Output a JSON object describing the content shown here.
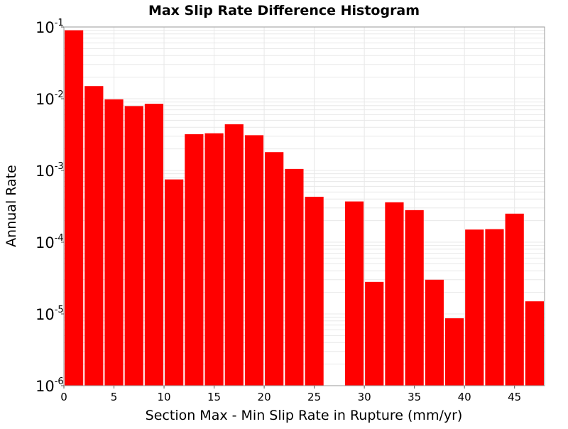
{
  "chart_data": {
    "type": "bar",
    "title": "Max Slip Rate Difference Histogram",
    "xlabel": "Section Max - Min Slip Rate in Rupture (mm/yr)",
    "ylabel": "Annual Rate",
    "x_scale": "linear",
    "y_scale": "log",
    "xlim": [
      0,
      48
    ],
    "ylim": [
      1e-06,
      0.1
    ],
    "x_ticks": [
      {
        "value": 0,
        "label": "0"
      },
      {
        "value": 5,
        "label": "5"
      },
      {
        "value": 10,
        "label": "10"
      },
      {
        "value": 15,
        "label": "15"
      },
      {
        "value": 20,
        "label": "20"
      },
      {
        "value": 25,
        "label": "25"
      },
      {
        "value": 30,
        "label": "30"
      },
      {
        "value": 35,
        "label": "35"
      },
      {
        "value": 40,
        "label": "40"
      },
      {
        "value": 45,
        "label": "45"
      }
    ],
    "y_ticks": [
      {
        "value": 1e-06,
        "base": "10",
        "exponent": "-6"
      },
      {
        "value": 1e-05,
        "base": "10",
        "exponent": "-5"
      },
      {
        "value": 0.0001,
        "base": "10",
        "exponent": "-4"
      },
      {
        "value": 0.001,
        "base": "10",
        "exponent": "-3"
      },
      {
        "value": 0.01,
        "base": "10",
        "exponent": "-2"
      },
      {
        "value": 0.1,
        "base": "10",
        "exponent": "-1"
      }
    ],
    "bin_width": 2,
    "bins": [
      {
        "x": 1,
        "value": 0.09
      },
      {
        "x": 3,
        "value": 0.015
      },
      {
        "x": 5,
        "value": 0.0098
      },
      {
        "x": 7,
        "value": 0.0079
      },
      {
        "x": 9,
        "value": 0.0085
      },
      {
        "x": 11,
        "value": 0.00075
      },
      {
        "x": 13,
        "value": 0.0032
      },
      {
        "x": 15,
        "value": 0.0033
      },
      {
        "x": 17,
        "value": 0.0044
      },
      {
        "x": 19,
        "value": 0.0031
      },
      {
        "x": 21,
        "value": 0.0018
      },
      {
        "x": 23,
        "value": 0.00105
      },
      {
        "x": 25,
        "value": 0.00043
      },
      {
        "x": 27,
        "value": 0
      },
      {
        "x": 29,
        "value": 0.00037
      },
      {
        "x": 31,
        "value": 2.8e-05
      },
      {
        "x": 33,
        "value": 0.00036
      },
      {
        "x": 35,
        "value": 0.00028
      },
      {
        "x": 37,
        "value": 3e-05
      },
      {
        "x": 39,
        "value": 8.7e-06
      },
      {
        "x": 41,
        "value": 0.00015
      },
      {
        "x": 43,
        "value": 0.000152
      },
      {
        "x": 45,
        "value": 0.00025
      },
      {
        "x": 47,
        "value": 1.5e-05
      }
    ],
    "bar_color": "#ff0000",
    "grid": true,
    "grid_color": "#e8e8e8",
    "legend": "none"
  }
}
